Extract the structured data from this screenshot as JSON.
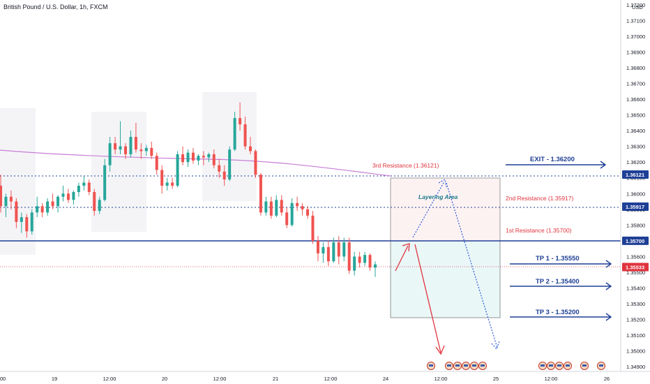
{
  "header": {
    "title": "British Pound / U.S. Dollar, 1h, FXCM"
  },
  "axis": {
    "currency": "USD",
    "y_ticks": [
      "1.37200",
      "1.37100",
      "1.37000",
      "1.36900",
      "1.36800",
      "1.36700",
      "1.36600",
      "1.36500",
      "1.36400",
      "1.36300",
      "1.36200",
      "1.36100",
      "1.36000",
      "1.35900",
      "1.35800",
      "1.35700",
      "1.35600",
      "1.35500",
      "1.35400",
      "1.35300",
      "1.35200",
      "1.35100",
      "1.35000",
      "1.34900"
    ],
    "x_ticks": [
      "00",
      "19",
      "12:00",
      "20",
      "12:00",
      "21",
      "12:00",
      "24",
      "12:00",
      "25",
      "12:00",
      "26"
    ]
  },
  "price_tags": [
    {
      "label": "1.36121",
      "color": "#1e3f96"
    },
    {
      "label": "1.35917",
      "color": "#1e3f96"
    },
    {
      "label": "1.35700",
      "color": "#1e3f96"
    },
    {
      "label": "1.35533",
      "color": "#e0333d"
    }
  ],
  "annotations": {
    "res3": "3rd Resistance (1.36121)",
    "res2": "2nd Resistance (1.35917)",
    "res1": "1st Resistance (1.35700)",
    "layering": "Layering Area",
    "exit": "EXIT - 1.36200",
    "tp1": "TP 1 - 1.35550",
    "tp2": "TP 2 - 1.35400",
    "tp3": "TP 3 - 1.35200"
  },
  "colors": {
    "up": "#26a69a",
    "down": "#ef5350",
    "level": "#1e3f96",
    "ma": "#c77dd6",
    "resistance_text": "#e0333d",
    "tp_text": "#1e3f96"
  },
  "chart_data": {
    "type": "candlestick",
    "symbol": "GBPUSD",
    "timeframe": "1h",
    "ylim": [
      1.3487,
      1.3723
    ],
    "levels": [
      1.36121,
      1.35917,
      1.357
    ],
    "current_price": 1.35533,
    "targets": {
      "exit": 1.362,
      "tp1": 1.3555,
      "tp2": 1.354,
      "tp3": 1.352
    },
    "candles": [
      [
        1.3605,
        1.3612,
        1.3588,
        1.3592
      ],
      [
        1.3592,
        1.36,
        1.3585,
        1.3598
      ],
      [
        1.3598,
        1.3602,
        1.359,
        1.3595
      ],
      [
        1.3595,
        1.3597,
        1.3578,
        1.3582
      ],
      [
        1.3582,
        1.3588,
        1.3575,
        1.3585
      ],
      [
        1.3585,
        1.3587,
        1.3572,
        1.3576
      ],
      [
        1.3576,
        1.359,
        1.3574,
        1.3588
      ],
      [
        1.3588,
        1.3598,
        1.3585,
        1.3592
      ],
      [
        1.3592,
        1.3594,
        1.3585,
        1.3588
      ],
      [
        1.3588,
        1.3597,
        1.3586,
        1.3595
      ],
      [
        1.3595,
        1.36,
        1.359,
        1.3592
      ],
      [
        1.3592,
        1.3599,
        1.3588,
        1.3598
      ],
      [
        1.3598,
        1.3605,
        1.3595,
        1.36
      ],
      [
        1.36,
        1.3603,
        1.3594,
        1.3596
      ],
      [
        1.3596,
        1.3602,
        1.3593,
        1.3601
      ],
      [
        1.3601,
        1.3607,
        1.3598,
        1.3605
      ],
      [
        1.3605,
        1.3611,
        1.3602,
        1.3607
      ],
      [
        1.3607,
        1.3609,
        1.3599,
        1.3601
      ],
      [
        1.3601,
        1.3603,
        1.3586,
        1.3589
      ],
      [
        1.3589,
        1.3598,
        1.3587,
        1.3596
      ],
      [
        1.3596,
        1.3622,
        1.3595,
        1.3618
      ],
      [
        1.3618,
        1.3636,
        1.3614,
        1.3632
      ],
      [
        1.3632,
        1.3636,
        1.3625,
        1.3628
      ],
      [
        1.3628,
        1.3646,
        1.3625,
        1.363
      ],
      [
        1.363,
        1.3632,
        1.3622,
        1.3625
      ],
      [
        1.3625,
        1.364,
        1.3623,
        1.3636
      ],
      [
        1.3636,
        1.3645,
        1.3626,
        1.3628
      ],
      [
        1.3628,
        1.3632,
        1.3622,
        1.3627
      ],
      [
        1.3627,
        1.3631,
        1.3624,
        1.3629
      ],
      [
        1.3629,
        1.3633,
        1.3622,
        1.3624
      ],
      [
        1.3624,
        1.3626,
        1.3612,
        1.3615
      ],
      [
        1.3615,
        1.3618,
        1.36,
        1.3605
      ],
      [
        1.3605,
        1.361,
        1.3602,
        1.3607
      ],
      [
        1.3607,
        1.361,
        1.3603,
        1.3605
      ],
      [
        1.3605,
        1.3627,
        1.3604,
        1.3625
      ],
      [
        1.3625,
        1.363,
        1.3618,
        1.362
      ],
      [
        1.362,
        1.3628,
        1.3617,
        1.3626
      ],
      [
        1.3626,
        1.3629,
        1.3619,
        1.3621
      ],
      [
        1.3621,
        1.3625,
        1.3618,
        1.3624
      ],
      [
        1.3624,
        1.3627,
        1.3618,
        1.3623
      ],
      [
        1.3623,
        1.3626,
        1.362,
        1.3625
      ],
      [
        1.3625,
        1.3628,
        1.3616,
        1.3618
      ],
      [
        1.3618,
        1.3622,
        1.361,
        1.3614
      ],
      [
        1.3614,
        1.3618,
        1.3605,
        1.3609
      ],
      [
        1.3609,
        1.363,
        1.3608,
        1.3628
      ],
      [
        1.3628,
        1.3652,
        1.3627,
        1.3648
      ],
      [
        1.3648,
        1.3658,
        1.364,
        1.3644
      ],
      [
        1.3644,
        1.3649,
        1.3628,
        1.363
      ],
      [
        1.363,
        1.3636,
        1.3625,
        1.3627
      ],
      [
        1.3627,
        1.3628,
        1.361,
        1.3612
      ],
      [
        1.3612,
        1.3613,
        1.3586,
        1.3588
      ],
      [
        1.3588,
        1.3598,
        1.3586,
        1.3595
      ],
      [
        1.3595,
        1.3598,
        1.3584,
        1.3586
      ],
      [
        1.3586,
        1.3599,
        1.3585,
        1.3596
      ],
      [
        1.3596,
        1.3599,
        1.3586,
        1.3588
      ],
      [
        1.3588,
        1.3591,
        1.3578,
        1.358
      ],
      [
        1.358,
        1.3597,
        1.3579,
        1.3594
      ],
      [
        1.3594,
        1.3598,
        1.3589,
        1.3592
      ],
      [
        1.3592,
        1.3594,
        1.3586,
        1.359
      ],
      [
        1.359,
        1.3592,
        1.3584,
        1.3586
      ],
      [
        1.3586,
        1.3589,
        1.3568,
        1.357
      ],
      [
        1.357,
        1.3573,
        1.3557,
        1.3562
      ],
      [
        1.3562,
        1.3569,
        1.3556,
        1.3566
      ],
      [
        1.3566,
        1.357,
        1.3554,
        1.3557
      ],
      [
        1.3557,
        1.3572,
        1.3556,
        1.3569
      ],
      [
        1.3569,
        1.3573,
        1.3555,
        1.356
      ],
      [
        1.356,
        1.3572,
        1.3557,
        1.3569
      ],
      [
        1.3569,
        1.3572,
        1.3549,
        1.3551
      ],
      [
        1.3551,
        1.3563,
        1.3548,
        1.356
      ],
      [
        1.356,
        1.3563,
        1.3553,
        1.3556
      ],
      [
        1.3556,
        1.3563,
        1.3554,
        1.3561
      ],
      [
        1.3561,
        1.3562,
        1.3551,
        1.3553
      ],
      [
        1.3553,
        1.3557,
        1.3547,
        1.3555
      ]
    ]
  }
}
